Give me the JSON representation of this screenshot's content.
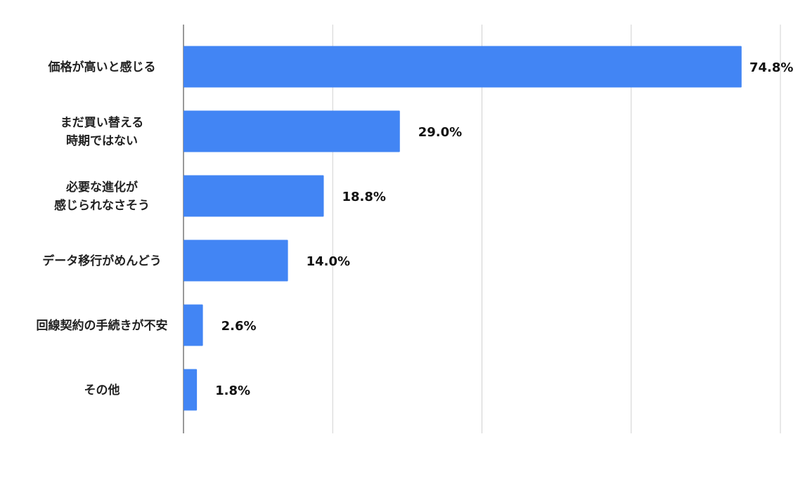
{
  "chart_data": {
    "type": "bar",
    "orientation": "horizontal",
    "title": "",
    "xlabel": "",
    "ylabel": "",
    "categories": [
      "価格が高いと感じる",
      "まだ買い替える\n時期ではない",
      "必要な進化が\n感じられなさそう",
      "データ移行がめんどう",
      "回線契約の手続きが不安",
      "その他"
    ],
    "values": [
      74.8,
      29.0,
      18.8,
      14.0,
      2.6,
      1.8
    ],
    "value_labels": [
      "74.8%",
      "29.0%",
      "18.8%",
      "14.0%",
      "2.6%",
      "1.8%"
    ],
    "xlim": [
      0,
      80
    ],
    "x_gridlines": [
      20,
      40,
      60,
      80
    ],
    "grid": true,
    "x_tick_labels_shown": false,
    "legend": "none",
    "bar_color": "#4285F4"
  }
}
